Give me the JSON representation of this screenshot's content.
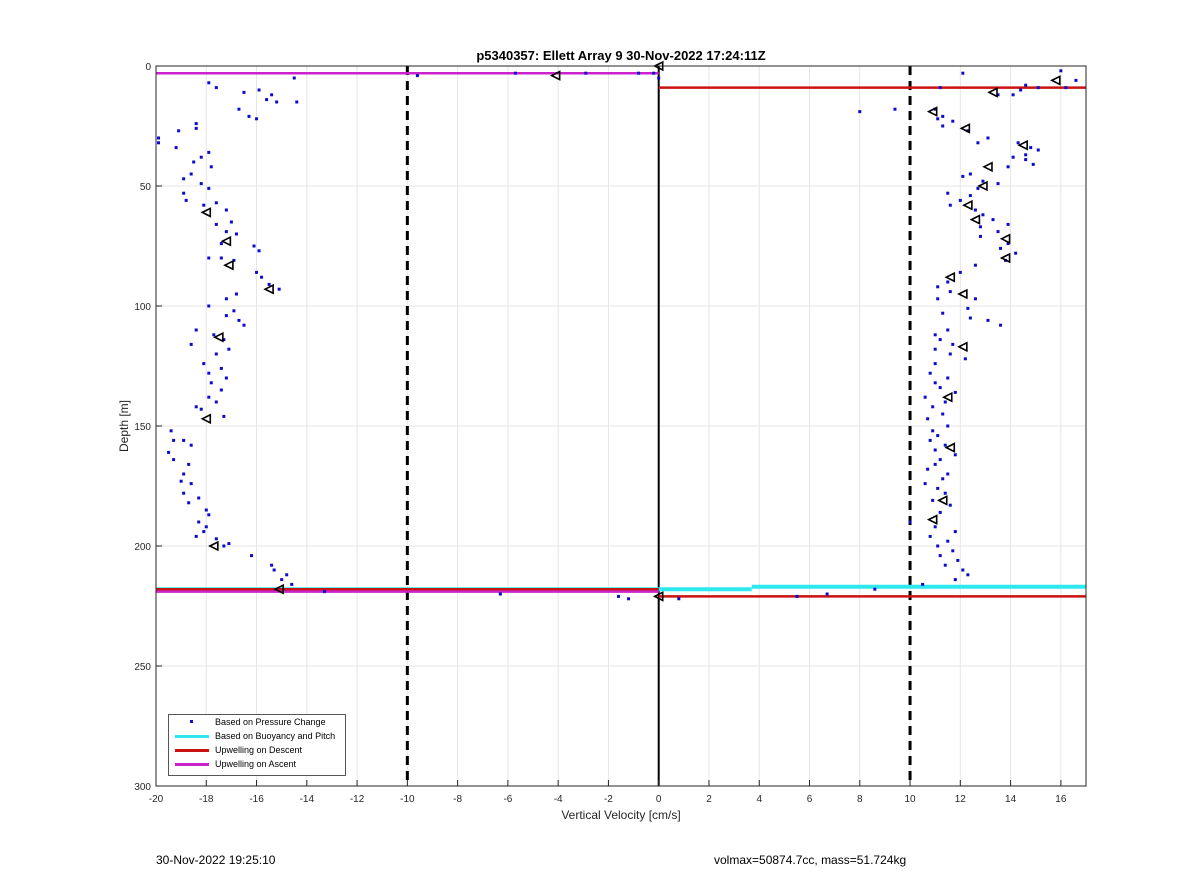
{
  "chart_data": {
    "type": "scatter",
    "title": "p5340357: Ellett Array 9 30-Nov-2022 17:24:11Z",
    "xlabel": "Vertical Velocity [cm/s]",
    "ylabel": "Depth [m]",
    "xlim": [
      -20,
      17
    ],
    "ylim": [
      0,
      300
    ],
    "y_reversed": true,
    "grid": true,
    "xticks": [
      "-20",
      "-18",
      "-16",
      "-14",
      "-12",
      "-10",
      "-8",
      "-6",
      "-4",
      "-2",
      "0",
      "2",
      "4",
      "6",
      "8",
      "10",
      "12",
      "14",
      "16"
    ],
    "yticks": [
      "0",
      "50",
      "100",
      "150",
      "200",
      "250",
      "300"
    ],
    "colors": {
      "pressure": "#0b0bd0",
      "buoyancy": "#2ee8f0",
      "descent": "#cc1111",
      "ascent": "#cc22cc",
      "reference": "#000000"
    },
    "legend_position": "bottom-left",
    "legend": [
      "Based on Pressure Change",
      "Based on Buoyancy and Pitch",
      "Upwelling on Descent",
      "Upwelling on Ascent"
    ],
    "reference_lines": [
      {
        "x": -10,
        "style": "dashed"
      },
      {
        "x": 10,
        "style": "dashed"
      },
      {
        "x": 0,
        "style": "solid"
      }
    ],
    "series": [
      {
        "name": "Based on Pressure Change",
        "marker": "dot",
        "points": [
          [
            -17.9,
            7
          ],
          [
            -17.6,
            9
          ],
          [
            -16.5,
            11
          ],
          [
            -15.9,
            10
          ],
          [
            -14.5,
            5
          ],
          [
            -15.4,
            12
          ],
          [
            -15.6,
            14
          ],
          [
            -15.2,
            15
          ],
          [
            -14.4,
            15
          ],
          [
            -16.7,
            18
          ],
          [
            -16.3,
            21
          ],
          [
            -16.0,
            22
          ],
          [
            -19.9,
            30
          ],
          [
            -19.9,
            32
          ],
          [
            -19.1,
            27
          ],
          [
            -18.4,
            24
          ],
          [
            -18.4,
            26
          ],
          [
            -19.2,
            34
          ],
          [
            -18.2,
            38
          ],
          [
            -18.5,
            40
          ],
          [
            -17.9,
            36
          ],
          [
            -17.8,
            42
          ],
          [
            -18.6,
            45
          ],
          [
            -18.9,
            47
          ],
          [
            -18.2,
            49
          ],
          [
            -17.9,
            51
          ],
          [
            -18.9,
            53
          ],
          [
            -18.8,
            56
          ],
          [
            -18.1,
            58
          ],
          [
            -17.6,
            57
          ],
          [
            -17.2,
            60
          ],
          [
            -17.0,
            65
          ],
          [
            -17.6,
            66
          ],
          [
            -17.2,
            69
          ],
          [
            -16.8,
            70
          ],
          [
            -17.4,
            74
          ],
          [
            -16.1,
            75
          ],
          [
            -15.9,
            77
          ],
          [
            -17.4,
            80
          ],
          [
            -17.9,
            80
          ],
          [
            -16.9,
            81
          ],
          [
            -16.0,
            86
          ],
          [
            -15.8,
            88
          ],
          [
            -15.5,
            91
          ],
          [
            -15.1,
            93
          ],
          [
            -16.8,
            95
          ],
          [
            -17.2,
            97
          ],
          [
            -16.9,
            102
          ],
          [
            -17.9,
            100
          ],
          [
            -17.2,
            104
          ],
          [
            -16.7,
            106
          ],
          [
            -16.5,
            108
          ],
          [
            -18.4,
            110
          ],
          [
            -18.6,
            116
          ],
          [
            -17.7,
            112
          ],
          [
            -17.3,
            114
          ],
          [
            -17.1,
            118
          ],
          [
            -17.6,
            120
          ],
          [
            -18.1,
            124
          ],
          [
            -17.4,
            126
          ],
          [
            -17.9,
            128
          ],
          [
            -17.2,
            130
          ],
          [
            -17.8,
            132
          ],
          [
            -17.4,
            135
          ],
          [
            -17.9,
            138
          ],
          [
            -17.6,
            140
          ],
          [
            -18.2,
            143
          ],
          [
            -17.3,
            146
          ],
          [
            -18.4,
            142
          ],
          [
            -19.4,
            152
          ],
          [
            -19.3,
            156
          ],
          [
            -18.9,
            156
          ],
          [
            -18.6,
            158
          ],
          [
            -19.5,
            161
          ],
          [
            -19.3,
            164
          ],
          [
            -18.7,
            166
          ],
          [
            -18.9,
            170
          ],
          [
            -19.0,
            173
          ],
          [
            -18.6,
            174
          ],
          [
            -18.9,
            178
          ],
          [
            -18.3,
            180
          ],
          [
            -18.7,
            182
          ],
          [
            -18.0,
            185
          ],
          [
            -17.9,
            187
          ],
          [
            -18.3,
            190
          ],
          [
            -18.0,
            192
          ],
          [
            -18.1,
            194
          ],
          [
            -18.4,
            196
          ],
          [
            -17.6,
            197
          ],
          [
            -17.1,
            199
          ],
          [
            -17.3,
            200
          ],
          [
            -16.2,
            204
          ],
          [
            -15.4,
            208
          ],
          [
            -15.3,
            210
          ],
          [
            -14.8,
            212
          ],
          [
            -15.0,
            214
          ],
          [
            -14.6,
            216
          ],
          [
            -13.3,
            219
          ],
          [
            -6.3,
            220
          ],
          [
            -1.6,
            221
          ],
          [
            -1.2,
            222
          ],
          [
            0.8,
            222
          ],
          [
            5.5,
            221
          ],
          [
            6.7,
            220
          ],
          [
            8.6,
            218
          ],
          [
            10.5,
            216
          ],
          [
            -9.6,
            4
          ],
          [
            -5.7,
            3
          ],
          [
            -2.9,
            3
          ],
          [
            -0.8,
            3
          ],
          [
            -0.2,
            3
          ],
          [
            0.0,
            5
          ],
          [
            16.0,
            2
          ],
          [
            16.6,
            6
          ],
          [
            16.2,
            9
          ],
          [
            14.6,
            8
          ],
          [
            15.1,
            9
          ],
          [
            13.5,
            12
          ],
          [
            11.2,
            9
          ],
          [
            12.1,
            3
          ],
          [
            14.1,
            12
          ],
          [
            14.4,
            10
          ],
          [
            8.0,
            19
          ],
          [
            9.4,
            18
          ],
          [
            11.0,
            18
          ],
          [
            11.3,
            21
          ],
          [
            11.1,
            22
          ],
          [
            11.7,
            23
          ],
          [
            11.3,
            25
          ],
          [
            12.3,
            27
          ],
          [
            13.1,
            30
          ],
          [
            12.7,
            32
          ],
          [
            14.3,
            32
          ],
          [
            14.8,
            34
          ],
          [
            15.1,
            35
          ],
          [
            14.6,
            37
          ],
          [
            14.1,
            38
          ],
          [
            14.6,
            39
          ],
          [
            14.9,
            41
          ],
          [
            13.9,
            42
          ],
          [
            12.4,
            45
          ],
          [
            12.1,
            46
          ],
          [
            12.9,
            48
          ],
          [
            13.5,
            49
          ],
          [
            12.7,
            51
          ],
          [
            11.5,
            53
          ],
          [
            12.4,
            54
          ],
          [
            12.0,
            56
          ],
          [
            11.6,
            58
          ],
          [
            12.6,
            60
          ],
          [
            12.9,
            62
          ],
          [
            13.3,
            64
          ],
          [
            13.9,
            66
          ],
          [
            12.8,
            67
          ],
          [
            13.5,
            69
          ],
          [
            12.8,
            71
          ],
          [
            13.9,
            74
          ],
          [
            13.6,
            76
          ],
          [
            14.2,
            78
          ],
          [
            13.8,
            81
          ],
          [
            12.6,
            83
          ],
          [
            12.0,
            86
          ],
          [
            11.5,
            90
          ],
          [
            11.1,
            92
          ],
          [
            11.6,
            94
          ],
          [
            11.1,
            97
          ],
          [
            12.6,
            97
          ],
          [
            12.3,
            101
          ],
          [
            11.3,
            103
          ],
          [
            12.4,
            105
          ],
          [
            13.1,
            106
          ],
          [
            13.6,
            108
          ],
          [
            11.5,
            110
          ],
          [
            11.0,
            112
          ],
          [
            11.2,
            114
          ],
          [
            11.7,
            116
          ],
          [
            11.0,
            118
          ],
          [
            11.6,
            120
          ],
          [
            12.2,
            122
          ],
          [
            11.0,
            124
          ],
          [
            10.8,
            128
          ],
          [
            11.5,
            130
          ],
          [
            11.0,
            132
          ],
          [
            11.2,
            134
          ],
          [
            11.8,
            136
          ],
          [
            10.6,
            138
          ],
          [
            11.4,
            140
          ],
          [
            10.9,
            142
          ],
          [
            11.3,
            145
          ],
          [
            10.7,
            147
          ],
          [
            11.5,
            150
          ],
          [
            10.9,
            152
          ],
          [
            11.1,
            154
          ],
          [
            10.8,
            156
          ],
          [
            11.4,
            158
          ],
          [
            11.0,
            160
          ],
          [
            11.8,
            162
          ],
          [
            11.2,
            164
          ],
          [
            11.0,
            166
          ],
          [
            10.7,
            168
          ],
          [
            11.5,
            170
          ],
          [
            11.3,
            172
          ],
          [
            10.6,
            174
          ],
          [
            11.1,
            176
          ],
          [
            11.4,
            178
          ],
          [
            10.9,
            181
          ],
          [
            11.6,
            183
          ],
          [
            11.2,
            186
          ],
          [
            10.0,
            190
          ],
          [
            11.0,
            192
          ],
          [
            11.8,
            194
          ],
          [
            10.8,
            196
          ],
          [
            11.5,
            198
          ],
          [
            11.1,
            200
          ],
          [
            11.7,
            202
          ],
          [
            11.2,
            204
          ],
          [
            11.9,
            206
          ],
          [
            11.4,
            208
          ],
          [
            12.1,
            210
          ],
          [
            12.3,
            212
          ],
          [
            11.8,
            214
          ]
        ]
      },
      {
        "name": "Based on Buoyancy and Pitch",
        "marker": "line",
        "segments": [
          {
            "x": [
              -20,
              0
            ],
            "y": 218
          },
          {
            "x": [
              0,
              3.7
            ],
            "y": 218
          },
          {
            "x": [
              3.7,
              17
            ],
            "y": 217
          }
        ]
      },
      {
        "name": "Upwelling on Descent",
        "marker": "line",
        "segments": [
          {
            "x": [
              0,
              17
            ],
            "y": 9
          },
          {
            "x": [
              0,
              17
            ],
            "y": 221
          },
          {
            "x": [
              -20,
              0
            ],
            "y": 218
          }
        ]
      },
      {
        "name": "Upwelling on Ascent",
        "marker": "line",
        "segments": [
          {
            "x": [
              -20,
              0
            ],
            "y": 3
          },
          {
            "x": [
              -20,
              0
            ],
            "y": 219
          }
        ]
      },
      {
        "name": "triangles",
        "marker": "triangle",
        "points": [
          [
            -18.0,
            61
          ],
          [
            -17.2,
            73
          ],
          [
            -17.1,
            83
          ],
          [
            -15.5,
            93
          ],
          [
            -17.5,
            113
          ],
          [
            -18.0,
            147
          ],
          [
            -17.7,
            200
          ],
          [
            -15.1,
            218
          ],
          [
            -4.1,
            4
          ],
          [
            0.0,
            0
          ],
          [
            0.0,
            221
          ],
          [
            15.8,
            6
          ],
          [
            13.3,
            11
          ],
          [
            10.9,
            19
          ],
          [
            12.2,
            26
          ],
          [
            14.5,
            33
          ],
          [
            13.1,
            42
          ],
          [
            12.9,
            50
          ],
          [
            12.3,
            58
          ],
          [
            12.6,
            64
          ],
          [
            13.8,
            72
          ],
          [
            13.8,
            80
          ],
          [
            11.6,
            88
          ],
          [
            12.1,
            95
          ],
          [
            12.1,
            117
          ],
          [
            11.5,
            138
          ],
          [
            11.6,
            159
          ],
          [
            11.3,
            181
          ],
          [
            10.9,
            189
          ]
        ]
      }
    ]
  },
  "footer": {
    "timestamp": "30-Nov-2022 19:25:10",
    "summary": "volmax=50874.7cc, mass=51.724kg"
  }
}
